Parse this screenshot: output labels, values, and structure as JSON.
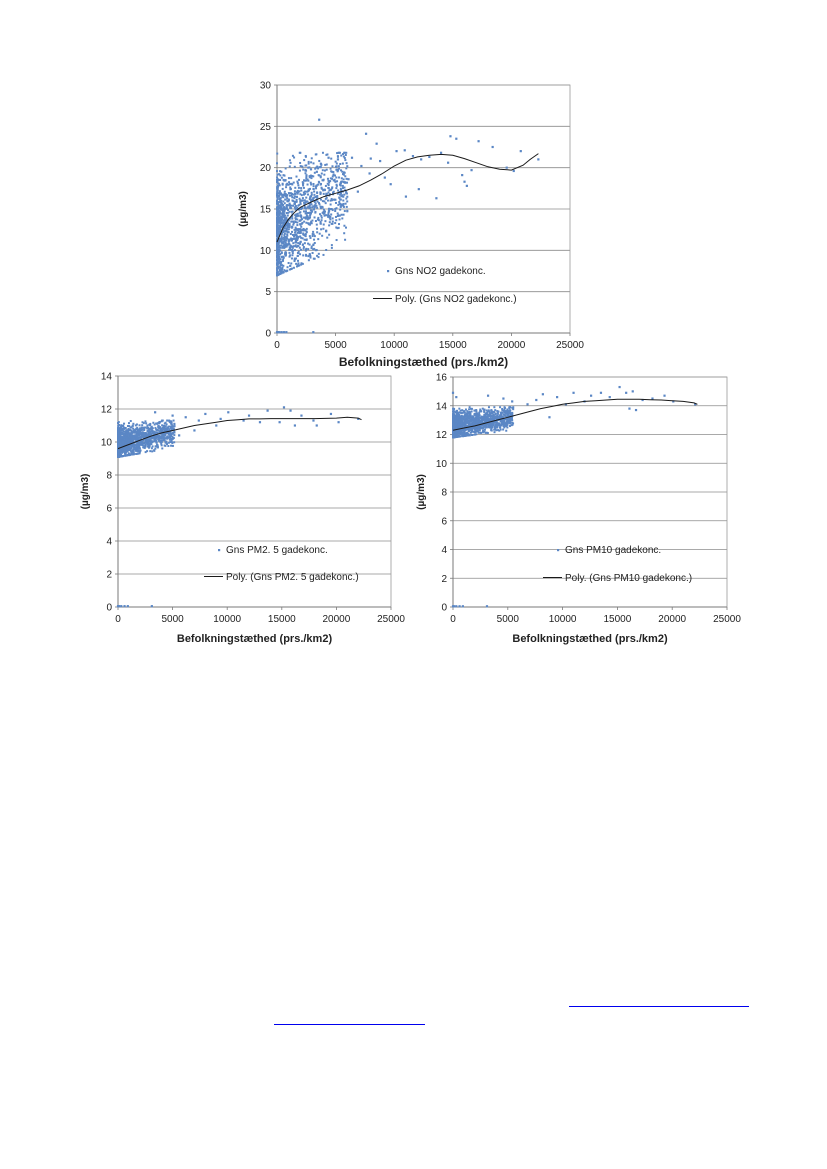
{
  "colors": {
    "scatter": "#5b87c5",
    "trend": "#1a1a1a",
    "grid": "#8c8c8c"
  },
  "chart_data": [
    {
      "type": "scatter",
      "id": "no2",
      "xlabel": "Befolkningstæthed (prs./km2)",
      "ylabel": "(µg/m3)",
      "xlim": [
        0,
        25000
      ],
      "ylim": [
        0,
        30
      ],
      "xticks": [
        0,
        5000,
        10000,
        15000,
        20000,
        25000
      ],
      "yticks": [
        0,
        5,
        10,
        15,
        20,
        25,
        30
      ],
      "grid": true,
      "legend_position": "lower-right",
      "series": [
        {
          "name": "Gns NO2 gadekonc.",
          "kind": "scatter",
          "points": [
            [
              3600,
              25.8
            ],
            [
              7600,
              24.1
            ],
            [
              8500,
              22.9
            ],
            [
              10200,
              22.0
            ],
            [
              10900,
              22.1
            ],
            [
              11600,
              21.4
            ],
            [
              12300,
              21.0
            ],
            [
              13000,
              21.3
            ],
            [
              13600,
              16.3
            ],
            [
              14000,
              21.8
            ],
            [
              14800,
              23.8
            ],
            [
              15300,
              23.5
            ],
            [
              15800,
              19.1
            ],
            [
              16200,
              17.8
            ],
            [
              16600,
              19.7
            ],
            [
              17200,
              23.2
            ],
            [
              18400,
              22.5
            ],
            [
              19600,
              20.0
            ],
            [
              20200,
              19.6
            ],
            [
              20800,
              22.0
            ],
            [
              22300,
              21.0
            ],
            [
              6400,
              21.2
            ],
            [
              6900,
              17.1
            ],
            [
              7200,
              20.2
            ],
            [
              8000,
              21.1
            ],
            [
              9200,
              18.8
            ],
            [
              11000,
              16.5
            ],
            [
              12100,
              17.4
            ],
            [
              14600,
              20.6
            ],
            [
              16000,
              18.3
            ],
            [
              5200,
              21.0
            ],
            [
              4400,
              21.2
            ],
            [
              2900,
              19.8
            ],
            [
              3400,
              19.5
            ],
            [
              6100,
              18.6
            ],
            [
              7900,
              19.3
            ],
            [
              9700,
              18.0
            ],
            [
              8800,
              20.8
            ],
            [
              2100,
              16.0
            ],
            [
              0,
              0.1
            ],
            [
              80,
              0.1
            ],
            [
              200,
              0.1
            ],
            [
              400,
              0.1
            ],
            [
              600,
              0.1
            ],
            [
              800,
              0.1
            ],
            [
              3100,
              0.1
            ]
          ],
          "cluster": {
            "x_max": 6000,
            "y_low": 7.0,
            "y_high": 21.8,
            "count": 1400,
            "seed": 11
          }
        },
        {
          "name": "Poly. (Gns NO2 gadekonc.)",
          "kind": "trend",
          "points": [
            [
              0,
              11.0
            ],
            [
              500,
              12.7
            ],
            [
              1000,
              13.8
            ],
            [
              1500,
              14.6
            ],
            [
              2000,
              15.2
            ],
            [
              3000,
              15.9
            ],
            [
              4000,
              16.5
            ],
            [
              5000,
              16.9
            ],
            [
              6000,
              17.3
            ],
            [
              7000,
              17.8
            ],
            [
              8000,
              18.5
            ],
            [
              9000,
              19.3
            ],
            [
              10000,
              20.2
            ],
            [
              11000,
              20.9
            ],
            [
              12000,
              21.3
            ],
            [
              13000,
              21.5
            ],
            [
              14000,
              21.6
            ],
            [
              15000,
              21.5
            ],
            [
              16000,
              21.1
            ],
            [
              17000,
              20.6
            ],
            [
              18000,
              20.1
            ],
            [
              19000,
              19.8
            ],
            [
              20000,
              19.7
            ],
            [
              21000,
              20.3
            ],
            [
              21600,
              21.0
            ],
            [
              22300,
              21.7
            ]
          ]
        }
      ]
    },
    {
      "type": "scatter",
      "id": "pm25",
      "xlabel": "Befolkningstæthed (prs./km2)",
      "ylabel": "(µg/m3)",
      "xlim": [
        0,
        25000
      ],
      "ylim": [
        0,
        14
      ],
      "xticks": [
        0,
        5000,
        10000,
        15000,
        20000,
        25000
      ],
      "yticks": [
        0,
        2,
        4,
        6,
        8,
        10,
        12,
        14
      ],
      "grid": true,
      "legend_position": "lower-right",
      "series": [
        {
          "name": "Gns PM2. 5 gadekonc.",
          "kind": "scatter",
          "points": [
            [
              3400,
              11.8
            ],
            [
              5000,
              11.6
            ],
            [
              6200,
              11.5
            ],
            [
              7400,
              11.3
            ],
            [
              8000,
              11.7
            ],
            [
              9400,
              11.4
            ],
            [
              10100,
              11.8
            ],
            [
              11500,
              11.3
            ],
            [
              12000,
              11.6
            ],
            [
              13000,
              11.2
            ],
            [
              13700,
              11.9
            ],
            [
              14800,
              11.2
            ],
            [
              15200,
              12.1
            ],
            [
              15800,
              11.9
            ],
            [
              16200,
              11.0
            ],
            [
              16800,
              11.6
            ],
            [
              17900,
              11.3
            ],
            [
              18200,
              11.0
            ],
            [
              19500,
              11.7
            ],
            [
              20200,
              11.2
            ],
            [
              22000,
              11.4
            ],
            [
              4200,
              10.2
            ],
            [
              5600,
              10.4
            ],
            [
              7000,
              10.7
            ],
            [
              9000,
              11.0
            ],
            [
              0,
              0.05
            ],
            [
              100,
              0.05
            ],
            [
              300,
              0.05
            ],
            [
              600,
              0.05
            ],
            [
              900,
              0.05
            ],
            [
              3100,
              0.05
            ]
          ],
          "cluster": {
            "x_max": 5200,
            "y_low": 9.1,
            "y_high": 11.3,
            "count": 1400,
            "seed": 23
          }
        },
        {
          "name": "Poly. (Gns PM2. 5 gadekonc.)",
          "kind": "trend",
          "points": [
            [
              0,
              9.6
            ],
            [
              1000,
              9.85
            ],
            [
              2000,
              10.1
            ],
            [
              3000,
              10.35
            ],
            [
              4000,
              10.55
            ],
            [
              5000,
              10.7
            ],
            [
              6000,
              10.85
            ],
            [
              7000,
              11.0
            ],
            [
              8000,
              11.1
            ],
            [
              9000,
              11.2
            ],
            [
              10000,
              11.3
            ],
            [
              11000,
              11.35
            ],
            [
              12000,
              11.4
            ],
            [
              13000,
              11.4
            ],
            [
              14000,
              11.42
            ],
            [
              15000,
              11.42
            ],
            [
              16000,
              11.42
            ],
            [
              17000,
              11.42
            ],
            [
              18000,
              11.42
            ],
            [
              19000,
              11.43
            ],
            [
              20000,
              11.45
            ],
            [
              21000,
              11.5
            ],
            [
              22000,
              11.45
            ],
            [
              22300,
              11.35
            ]
          ]
        }
      ]
    },
    {
      "type": "scatter",
      "id": "pm10",
      "xlabel": "Befolkningstæthed (prs./km2)",
      "ylabel": "(µg/m3)",
      "xlim": [
        0,
        25000
      ],
      "ylim": [
        0,
        16
      ],
      "xticks": [
        0,
        5000,
        10000,
        15000,
        20000,
        25000
      ],
      "yticks": [
        0,
        2,
        4,
        6,
        8,
        10,
        12,
        14,
        16
      ],
      "grid": true,
      "legend_position": "lower-right",
      "series": [
        {
          "name": "Gns PM10 gadekonc.",
          "kind": "scatter",
          "points": [
            [
              3200,
              14.7
            ],
            [
              4600,
              14.5
            ],
            [
              5400,
              14.3
            ],
            [
              6800,
              14.1
            ],
            [
              7600,
              14.4
            ],
            [
              8200,
              14.8
            ],
            [
              9500,
              14.6
            ],
            [
              10300,
              14.1
            ],
            [
              11000,
              14.9
            ],
            [
              12000,
              14.3
            ],
            [
              12600,
              14.7
            ],
            [
              13500,
              14.9
            ],
            [
              14300,
              14.6
            ],
            [
              15200,
              15.3
            ],
            [
              15800,
              14.9
            ],
            [
              16100,
              13.8
            ],
            [
              16400,
              15.0
            ],
            [
              16700,
              13.7
            ],
            [
              17300,
              14.4
            ],
            [
              18200,
              14.5
            ],
            [
              19300,
              14.7
            ],
            [
              20100,
              14.3
            ],
            [
              22100,
              14.1
            ],
            [
              0,
              14.9
            ],
            [
              300,
              14.6
            ],
            [
              8800,
              13.2
            ],
            [
              0,
              0.05
            ],
            [
              100,
              0.05
            ],
            [
              300,
              0.05
            ],
            [
              600,
              0.05
            ],
            [
              900,
              0.05
            ],
            [
              3100,
              0.05
            ]
          ],
          "cluster": {
            "x_max": 5500,
            "y_low": 11.8,
            "y_high": 13.9,
            "count": 1400,
            "seed": 37
          }
        },
        {
          "name": "Poly. (Gns PM10 gadekonc.)",
          "kind": "trend",
          "points": [
            [
              0,
              12.3
            ],
            [
              1000,
              12.45
            ],
            [
              2000,
              12.6
            ],
            [
              3000,
              12.8
            ],
            [
              4000,
              13.0
            ],
            [
              5000,
              13.2
            ],
            [
              6000,
              13.4
            ],
            [
              7000,
              13.6
            ],
            [
              8000,
              13.8
            ],
            [
              9000,
              13.95
            ],
            [
              10000,
              14.1
            ],
            [
              11000,
              14.2
            ],
            [
              12000,
              14.3
            ],
            [
              13000,
              14.35
            ],
            [
              14000,
              14.4
            ],
            [
              15000,
              14.45
            ],
            [
              16000,
              14.45
            ],
            [
              17000,
              14.45
            ],
            [
              18000,
              14.42
            ],
            [
              19000,
              14.4
            ],
            [
              20000,
              14.35
            ],
            [
              21000,
              14.3
            ],
            [
              22000,
              14.2
            ],
            [
              22300,
              14.1
            ]
          ]
        }
      ]
    }
  ]
}
